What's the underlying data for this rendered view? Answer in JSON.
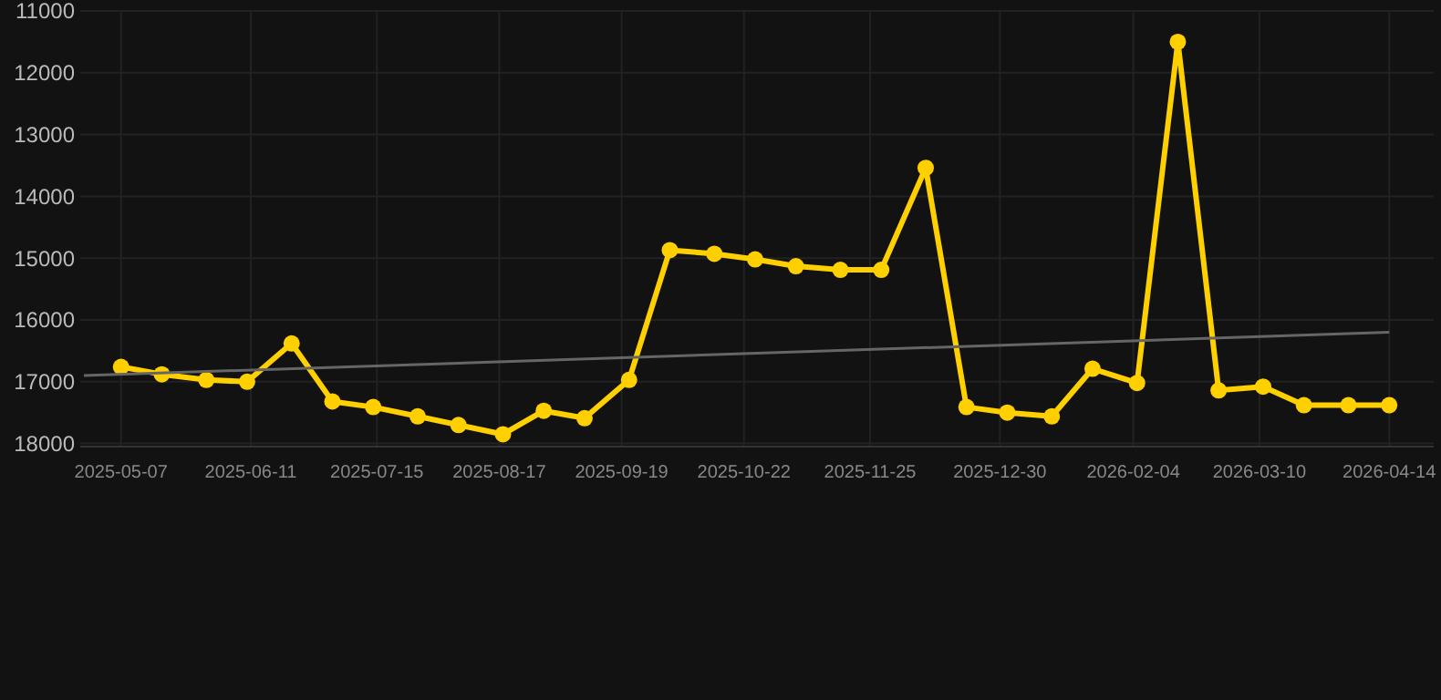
{
  "chart_data": {
    "type": "line",
    "x": [
      "2025-05-07",
      "2025-05-18",
      "2025-05-30",
      "2025-06-10",
      "2025-06-22",
      "2025-07-03",
      "2025-07-14",
      "2025-07-26",
      "2025-08-06",
      "2025-08-18",
      "2025-08-29",
      "2025-09-09",
      "2025-09-21",
      "2025-10-02",
      "2025-10-14",
      "2025-10-25",
      "2025-11-05",
      "2025-11-17",
      "2025-11-28",
      "2025-12-10",
      "2025-12-21",
      "2026-01-01",
      "2026-01-13",
      "2026-01-24",
      "2026-02-05",
      "2026-02-16",
      "2026-02-27",
      "2026-03-11",
      "2026-03-22",
      "2026-04-03",
      "2026-04-14"
    ],
    "series": [
      {
        "color": "#ffd000",
        "marker": "circle",
        "values": [
          16760,
          16880,
          16970,
          17000,
          16380,
          17320,
          17410,
          17560,
          17700,
          17850,
          17470,
          17590,
          16970,
          14870,
          14930,
          15020,
          15130,
          15190,
          15190,
          13540,
          17410,
          17500,
          17560,
          16790,
          17020,
          11500,
          17140,
          17080,
          17380,
          17380,
          17380
        ]
      },
      {
        "type": "line",
        "color": "#666666",
        "marker": "none",
        "x": [
          "2025-04-27",
          "2026-04-14"
        ],
        "values": [
          16900,
          16200
        ]
      }
    ],
    "ylim": [
      18050,
      11000
    ],
    "yticks": [
      11000,
      12000,
      13000,
      14000,
      15000,
      16000,
      17000,
      18000
    ],
    "xlim": [
      "2025-04-26",
      "2026-04-26"
    ],
    "xticks": [
      "2025-05-07",
      "2025-06-11",
      "2025-07-15",
      "2025-08-17",
      "2025-09-19",
      "2025-10-22",
      "2025-11-25",
      "2025-12-30",
      "2026-02-04",
      "2026-03-10",
      "2026-04-14"
    ],
    "grid": true
  }
}
